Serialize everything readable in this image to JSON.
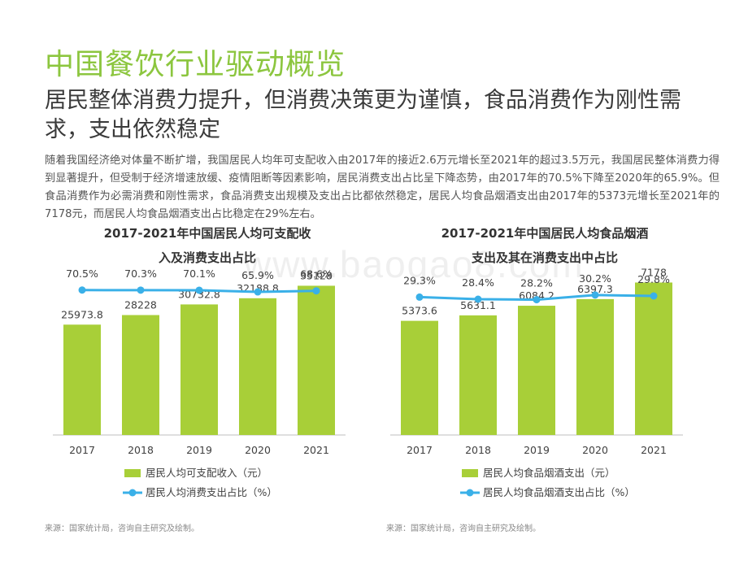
{
  "page": {
    "title": "中国餐饮行业驱动概览",
    "subtitle": "居民整体消费力提升，但消费决策更为谨慎，食品消费作为刚性需求，支出依然稳定",
    "paragraph": "随着我国经济绝对体量不断扩增，我国居民人均年可支配收入由2017年的接近2.6万元增长至2021年的超过3.5万元，我国居民整体消费力得到显著提升，但受制于经济增速放缓、疫情阻断等因素影响，居民消费支出占比呈下降态势，由2017年的70.5%下降至2020年的65.9%。但食品消费作为必需消费和刚性需求，食品消费支出规模及支出占比都依然稳定，居民人均食品烟酒支出由2017年的5373元增长至2021年的7178元，而居民人均食品烟酒支出占比稳定在29%左右。",
    "watermark": "www.baogao8.com",
    "source_left": "来源：国家统计局，咨询自主研究及绘制。",
    "source_right": "来源：国家统计局，咨询自主研究及绘制。"
  },
  "colors": {
    "title": "#8cc63f",
    "bar": "#a8cf38",
    "line": "#3ab0e8",
    "axis": "#bfbfbf"
  },
  "chart_data": [
    {
      "type": "bar",
      "title_line1": "2017-2021年中国居民人均可支配收",
      "title_line2": "入及消费支出占比",
      "categories": [
        "2017",
        "2018",
        "2019",
        "2020",
        "2021"
      ],
      "series": [
        {
          "name": "居民人均可支配收入（元）",
          "type": "bar",
          "values": [
            25973.8,
            28228,
            30732.8,
            32188.8,
            35128
          ],
          "labels": [
            "25973.8",
            "28228",
            "30732.8",
            "32188.8",
            "35128"
          ]
        },
        {
          "name": "居民人均消费支出占比（%）",
          "type": "line",
          "values": [
            70.5,
            70.3,
            70.1,
            65.9,
            68.6
          ],
          "labels": [
            "70.5%",
            "70.3%",
            "70.1%",
            "65.9%",
            "68.6%"
          ]
        }
      ],
      "ylim": [
        0,
        60000
      ],
      "y2lim": [
        0,
        80
      ]
    },
    {
      "type": "bar",
      "title_line1": "2017-2021年中国居民人均食品烟酒",
      "title_line2": "支出及其在消费支出中占比",
      "categories": [
        "2017",
        "2018",
        "2019",
        "2020",
        "2021"
      ],
      "series": [
        {
          "name": "居民人均食品烟酒支出（元）",
          "type": "bar",
          "values": [
            5373.6,
            5631.1,
            6084.2,
            6397.3,
            7178
          ],
          "labels": [
            "5373.6",
            "5631.1",
            "6084.2",
            "6397.3",
            "7178"
          ]
        },
        {
          "name": "居民人均食品烟酒支出占比（%）",
          "type": "line",
          "values": [
            29.3,
            28.4,
            28.2,
            30.2,
            29.8
          ],
          "labels": [
            "29.3%",
            "28.4%",
            "28.2%",
            "30.2%",
            "29.8%"
          ]
        }
      ],
      "ylim": [
        0,
        12000
      ],
      "y2lim": [
        20,
        34
      ]
    }
  ]
}
